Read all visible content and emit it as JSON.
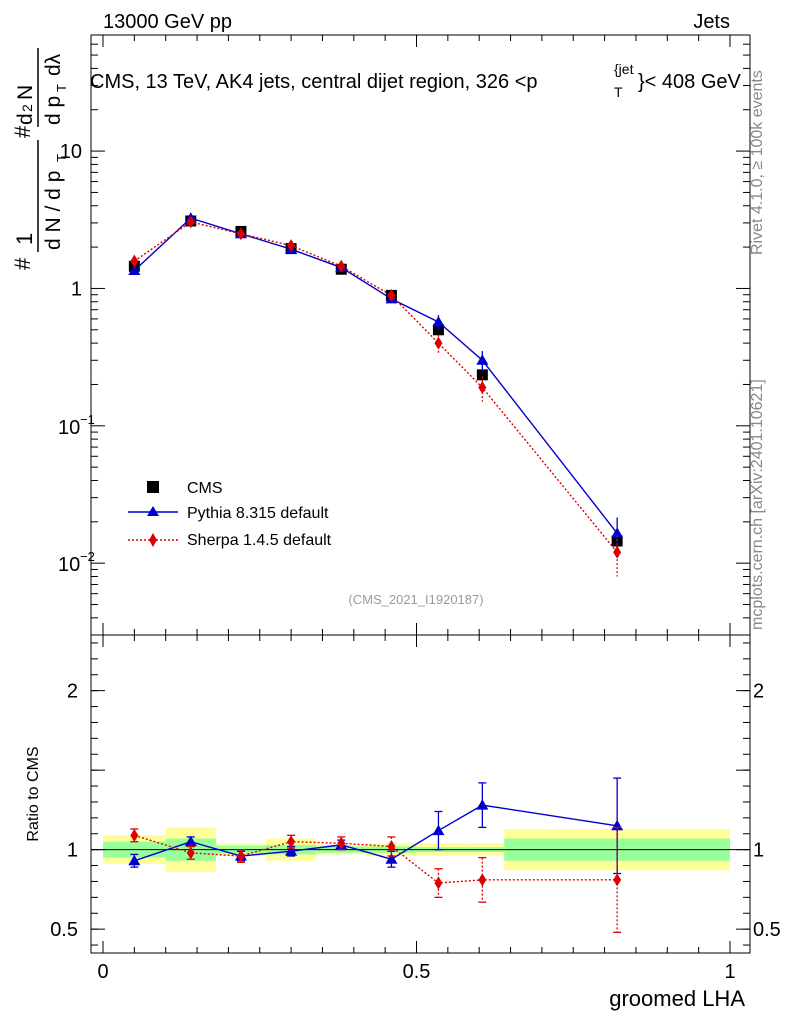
{
  "header": {
    "left": "13000 GeV pp",
    "right": "Jets"
  },
  "title": "CMS, 13 TeV, AK4 jets, central dijet region, 326 <p",
  "title_sup": "{jet",
  "title_sub": "T",
  "title_end": "}< 408 GeV",
  "side_labels": {
    "rivet": "Rivet 4.1.0, ≥ 100k events",
    "mcplots": "mcplots.cern.ch [arXiv:2401.10621]"
  },
  "watermark": "(CMS_2021_I1920187)",
  "legend": {
    "cms": "CMS",
    "pythia": "Pythia 8.315 default",
    "sherpa": "Sherpa 1.4.5 default"
  },
  "colors": {
    "cms": "#000000",
    "pythia": "#0000cc",
    "sherpa": "#dd0000",
    "band_inner": "#99ff99",
    "band_outer": "#ffff99"
  },
  "chart_data": {
    "type": "line",
    "xlabel": "groomed LHA",
    "ylabel": "1 / dN/dpT  ·  d²N / dpT dλ",
    "ylabel_ratio": "Ratio to CMS",
    "xlim": [
      0,
      1
    ],
    "ylim": [
      0.003,
      70
    ],
    "yscale": "log",
    "ylim_ratio": [
      0.35,
      2.35
    ],
    "x_ticks": [
      "0",
      "0.5",
      "1"
    ],
    "y_ticks": [
      {
        "value": 0.01,
        "base": "10",
        "exp": "−2"
      },
      {
        "value": 0.1,
        "base": "10",
        "exp": "−1"
      },
      {
        "value": 1,
        "base": "1",
        "exp": ""
      },
      {
        "value": 10,
        "base": "10",
        "exp": ""
      }
    ],
    "ratio_ticks": [
      "0.5",
      "1",
      "2"
    ],
    "bins": [
      {
        "lo": 0.0,
        "hi": 0.1
      },
      {
        "lo": 0.1,
        "hi": 0.18
      },
      {
        "lo": 0.18,
        "hi": 0.26
      },
      {
        "lo": 0.26,
        "hi": 0.34
      },
      {
        "lo": 0.34,
        "hi": 0.42
      },
      {
        "lo": 0.42,
        "hi": 0.5
      },
      {
        "lo": 0.5,
        "hi": 0.58
      },
      {
        "lo": 0.58,
        "hi": 0.64
      },
      {
        "lo": 0.64,
        "hi": 1.0
      }
    ],
    "x": [
      0.05,
      0.14,
      0.22,
      0.3,
      0.38,
      0.46,
      0.535,
      0.605,
      0.82
    ],
    "series": [
      {
        "name": "CMS",
        "values": [
          1.45,
          3.1,
          2.6,
          1.95,
          1.38,
          0.89,
          0.5,
          0.235,
          0.0145
        ],
        "band_inner": [
          0.05,
          0.07,
          0.025,
          0.03,
          0.02,
          0.02,
          0.015,
          0.015,
          0.07
        ],
        "band_outer": [
          0.09,
          0.14,
          0.04,
          0.07,
          0.03,
          0.04,
          0.04,
          0.04,
          0.13
        ]
      },
      {
        "name": "Pythia 8.315 default",
        "values": [
          1.35,
          3.25,
          2.5,
          1.93,
          1.42,
          0.84,
          0.57,
          0.3,
          0.0165
        ],
        "errors": [
          0.06,
          0.12,
          0.06,
          0.05,
          0.04,
          0.04,
          0.07,
          0.05,
          0.005
        ],
        "ratio": [
          0.93,
          1.05,
          0.96,
          0.99,
          1.03,
          0.94,
          1.12,
          1.28,
          1.15
        ],
        "ratio_errors": [
          0.04,
          0.03,
          0.03,
          0.03,
          0.03,
          0.05,
          0.12,
          0.14,
          0.3
        ]
      },
      {
        "name": "Sherpa 1.4.5 default",
        "values": [
          1.58,
          3.05,
          2.5,
          2.05,
          1.45,
          0.89,
          0.4,
          0.19,
          0.012
        ],
        "errors": [
          0.07,
          0.12,
          0.07,
          0.07,
          0.06,
          0.06,
          0.06,
          0.04,
          0.004
        ],
        "ratio": [
          1.09,
          0.98,
          0.96,
          1.05,
          1.04,
          1.02,
          0.79,
          0.81,
          0.81
        ],
        "ratio_errors": [
          0.04,
          0.04,
          0.04,
          0.04,
          0.04,
          0.06,
          0.09,
          0.14,
          0.33
        ]
      }
    ]
  }
}
